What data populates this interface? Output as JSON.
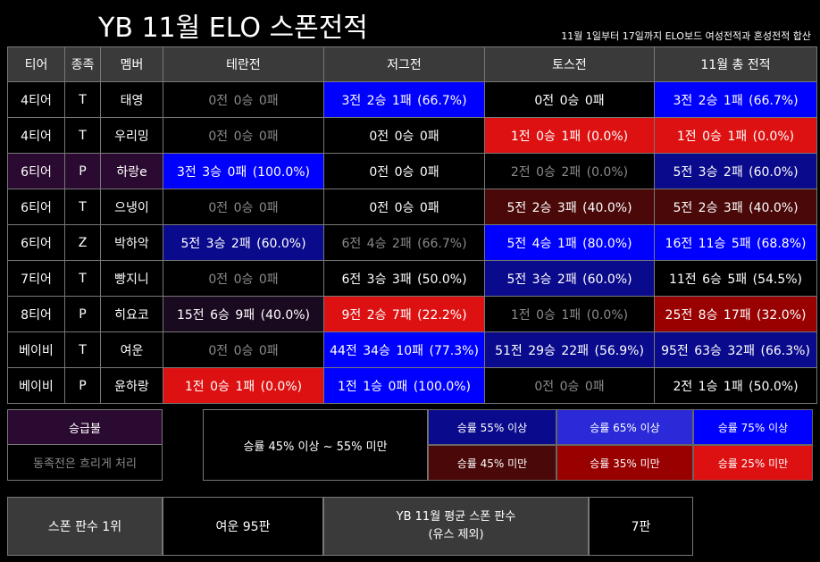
{
  "title": "YB 11월 ELO 스폰전적",
  "subtitle": "11월 1일부터 17일까지 ELO보드 여성전적과 혼성전적 합산",
  "headers": [
    "티어",
    "종족",
    "멤버",
    "테란전",
    "저그전",
    "토스전",
    "11월 총 전적"
  ],
  "rows": [
    {
      "tier": "4티어",
      "race": "T",
      "member": "태영",
      "terran": "0전  0승  0패",
      "zerg": "3전  2승  1패  (66.7%)",
      "toss": "0전  0승  0패",
      "total": "3전  2승  1패  (66.7%)"
    },
    {
      "tier": "4티어",
      "race": "T",
      "member": "우리밍",
      "terran": "0전  0승  0패",
      "zerg": "0전  0승  0패",
      "toss": "1전  0승  1패  (0.0%)",
      "total": "1전  0승  1패  (0.0%)"
    },
    {
      "tier": "6티어",
      "race": "P",
      "member": "하랑e",
      "terran": "3전  3승  0패 (100.0%)",
      "zerg": "0전  0승  0패",
      "toss": "2전  0승  2패  (0.0%)",
      "total": "5전  3승  2패  (60.0%)"
    },
    {
      "tier": "6티어",
      "race": "T",
      "member": "으냉이",
      "terran": "0전  0승  0패",
      "zerg": "0전  0승  0패",
      "toss": "5전  2승  3패  (40.0%)",
      "total": "5전  2승  3패  (40.0%)"
    },
    {
      "tier": "6티어",
      "race": "Z",
      "member": "박하악",
      "terran": "5전  3승  2패  (60.0%)",
      "zerg": "6전  4승  2패  (66.7%)",
      "toss": "5전  4승  1패  (80.0%)",
      "total": "16전 11승  5패  (68.8%)"
    },
    {
      "tier": "7티어",
      "race": "T",
      "member": "빵지니",
      "terran": "0전  0승  0패",
      "zerg": "6전  3승  3패  (50.0%)",
      "toss": "5전  3승  2패  (60.0%)",
      "total": "11전  6승  5패  (54.5%)"
    },
    {
      "tier": "8티어",
      "race": "P",
      "member": "히요코",
      "terran": "15전  6승  9패  (40.0%)",
      "zerg": "9전  2승  7패  (22.2%)",
      "toss": "1전  0승  1패  (0.0%)",
      "total": "25전  8승 17패  (32.0%)"
    },
    {
      "tier": "베이비",
      "race": "T",
      "member": "여운",
      "terran": "0전  0승  0패",
      "zerg": "44전 34승 10패  (77.3%)",
      "toss": "51전 29승 22패  (56.9%)",
      "total": "95전 63승 32패  (66.3%)"
    },
    {
      "tier": "베이비",
      "race": "P",
      "member": "윤하랑",
      "terran": "1전  0승  1패  (0.0%)",
      "zerg": "1전  1승  0패 (100.0%)",
      "toss": "0전  0승  0패",
      "total": "2전  1승  1패  (50.0%)"
    }
  ],
  "promo": {
    "title": "승급불",
    "note": "동족전은 흐리게 처리"
  },
  "legend": {
    "neutral": "승률 45% 이상 ~ 55% 미만",
    "up": [
      "승률 55% 이상",
      "승률 65% 이상",
      "승률 75% 이상"
    ],
    "down": [
      "승률 45% 미만",
      "승률 35% 미만",
      "승률 25% 미만"
    ]
  },
  "bottom": {
    "rank_label": "스폰 판수 1위",
    "rank_value": "여운 95판",
    "avg_label_1": "YB 11월 평균 스폰 판수",
    "avg_label_2": "(유스 제외)",
    "avg_value": "7판"
  },
  "colors": {
    "up1": "#0a0a8c",
    "up2": "#2a2ad8",
    "up3": "#0000ff",
    "down1": "#4a0808",
    "down2": "#990000",
    "down3": "#dd1111",
    "header": "#3a3a3a",
    "dimmed": "#8a8a8a"
  }
}
